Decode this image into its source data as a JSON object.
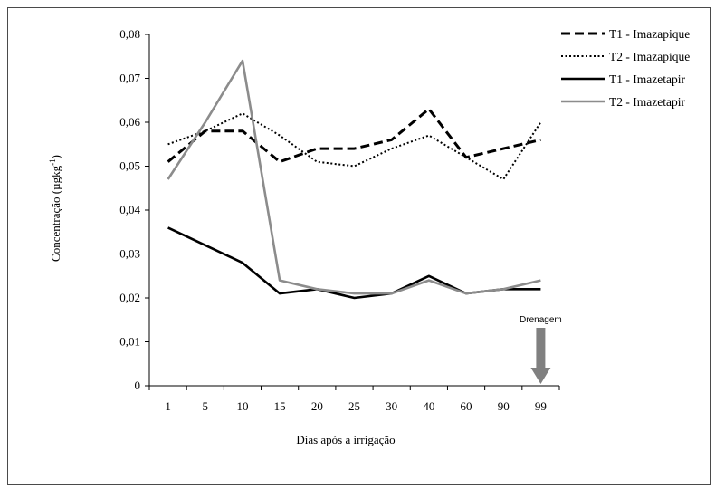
{
  "chart_data": {
    "type": "line",
    "title": "",
    "xlabel": "Dias após a irrigação",
    "ylabel": "Concentração (µgkg",
    "ylabel_sup": "-1",
    "ylabel_close": ")",
    "categories": [
      "1",
      "5",
      "10",
      "15",
      "20",
      "25",
      "30",
      "40",
      "60",
      "90",
      "99"
    ],
    "y_ticks": [
      "0",
      "0,01",
      "0,02",
      "0,03",
      "0,04",
      "0,05",
      "0,06",
      "0,07",
      "0,08"
    ],
    "ylim": [
      0,
      0.08
    ],
    "grid": false,
    "legend_position": "top-right",
    "series": [
      {
        "name": "T1 - Imazapique",
        "style": "dashed",
        "color": "#000000",
        "values": [
          0.051,
          0.058,
          0.058,
          0.051,
          0.054,
          0.054,
          0.056,
          0.063,
          0.052,
          0.054,
          0.056
        ]
      },
      {
        "name": "T2 - Imazapique",
        "style": "dotted",
        "color": "#000000",
        "values": [
          0.055,
          0.058,
          0.062,
          0.057,
          0.051,
          0.05,
          0.054,
          0.057,
          0.052,
          0.047,
          0.06
        ]
      },
      {
        "name": "T1 - Imazetapir",
        "style": "solid",
        "color": "#000000",
        "values": [
          0.036,
          0.032,
          0.028,
          0.021,
          0.022,
          0.02,
          0.021,
          0.025,
          0.021,
          0.022,
          0.022
        ]
      },
      {
        "name": "T2 - Imazetapir",
        "style": "solid",
        "color": "#8c8c8c",
        "values": [
          0.047,
          0.06,
          0.074,
          0.024,
          0.022,
          0.021,
          0.021,
          0.024,
          0.021,
          0.022,
          0.024
        ]
      }
    ],
    "annotation": {
      "text": "Drenagem",
      "category": "99",
      "arrow_color": "#808080"
    }
  }
}
